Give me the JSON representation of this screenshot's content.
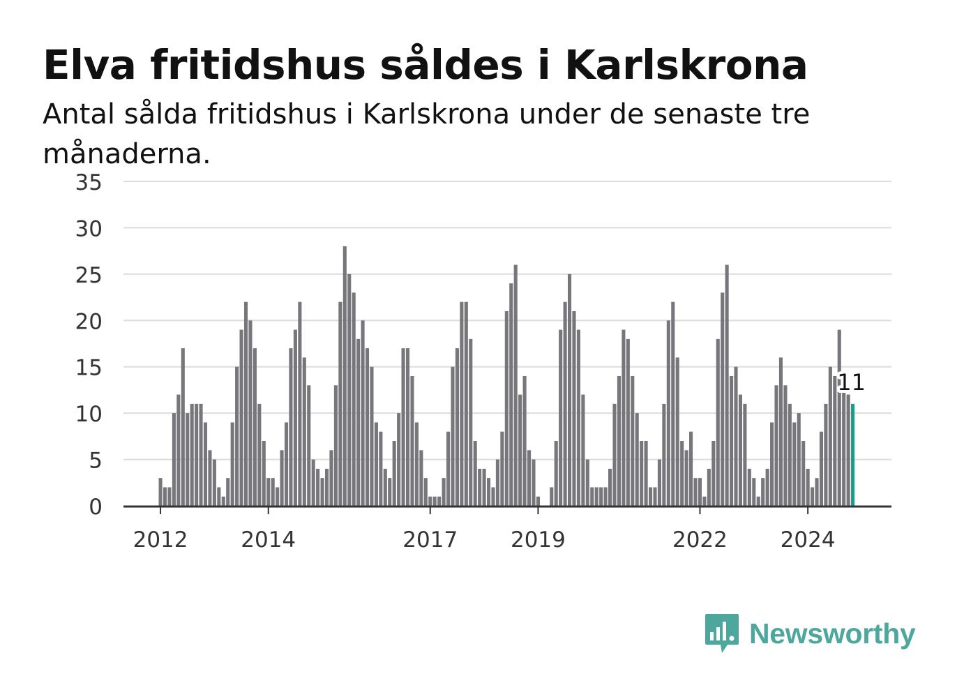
{
  "title": "Elva fritidshus såldes i Karlskrona",
  "subtitle": "Antal sålda fritidshus i Karlskrona under de senaste tre månaderna.",
  "brand": {
    "name": "Newsworthy",
    "icon": "newsworthy-logo-icon"
  },
  "colors": {
    "bar": "#77767b",
    "highlight": "#1a9c8f",
    "grid": "#dddddd",
    "axis": "#333333",
    "brand": "#4ea79c"
  },
  "chart_data": {
    "type": "bar",
    "title": "Elva fritidshus såldes i Karlskrona",
    "xlabel": "",
    "ylabel": "",
    "ylim": [
      0,
      35
    ],
    "yticks": [
      0,
      5,
      10,
      15,
      20,
      25,
      30,
      35
    ],
    "grid": true,
    "start": "2012-01",
    "frequency": "monthly",
    "xtick_labels": [
      {
        "label": "2012",
        "month_index": 0
      },
      {
        "label": "2014",
        "month_index": 24
      },
      {
        "label": "2017",
        "month_index": 60
      },
      {
        "label": "2019",
        "month_index": 84
      },
      {
        "label": "2022",
        "month_index": 120
      },
      {
        "label": "2024",
        "month_index": 144
      }
    ],
    "values": [
      3,
      2,
      2,
      10,
      12,
      17,
      10,
      11,
      11,
      11,
      9,
      6,
      5,
      2,
      1,
      3,
      9,
      15,
      19,
      22,
      20,
      17,
      11,
      7,
      3,
      3,
      2,
      6,
      9,
      17,
      19,
      22,
      16,
      13,
      5,
      4,
      3,
      4,
      6,
      13,
      22,
      28,
      25,
      23,
      18,
      20,
      17,
      15,
      9,
      8,
      4,
      3,
      7,
      10,
      17,
      17,
      14,
      9,
      6,
      3,
      1,
      1,
      1,
      3,
      8,
      15,
      17,
      22,
      22,
      18,
      7,
      4,
      4,
      3,
      2,
      5,
      8,
      21,
      24,
      26,
      12,
      14,
      6,
      5,
      1,
      0,
      0,
      2,
      7,
      19,
      22,
      25,
      21,
      19,
      12,
      5,
      2,
      2,
      2,
      2,
      4,
      11,
      14,
      19,
      18,
      14,
      10,
      7,
      7,
      2,
      2,
      5,
      11,
      20,
      22,
      16,
      7,
      6,
      8,
      3,
      3,
      1,
      4,
      7,
      18,
      23,
      26,
      14,
      15,
      12,
      11,
      4,
      3,
      1,
      3,
      4,
      9,
      13,
      16,
      13,
      11,
      9,
      10,
      7,
      4,
      2,
      3,
      8,
      11,
      15,
      14,
      19,
      13,
      12,
      11
    ],
    "highlight_label": "11"
  }
}
